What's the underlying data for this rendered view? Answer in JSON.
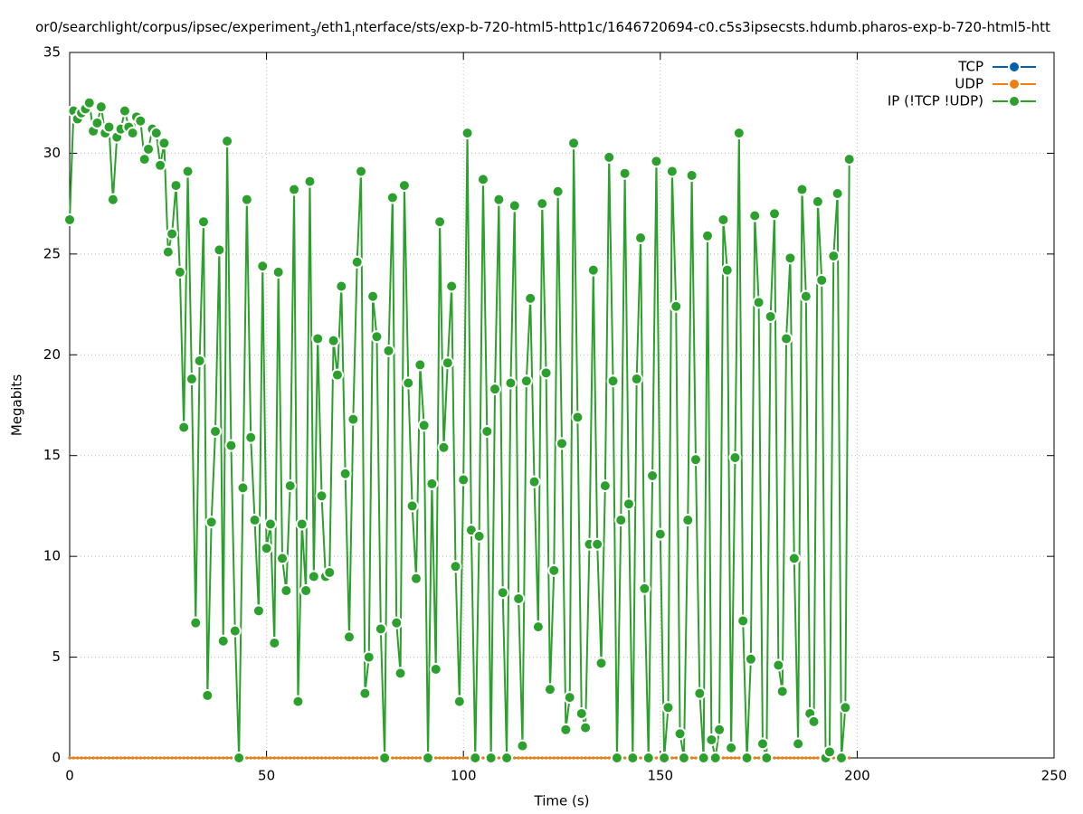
{
  "chart_data": {
    "type": "line",
    "title": [
      "or0/searchlight/corpus/ipsec/experiment",
      "3",
      "/eth1",
      "i",
      "nterface/sts/exp-b-720-html5-http1c/1646720694-c0.c5s3ipsecsts.hdumb.pharos-exp-b-720-html5-htt"
    ],
    "xlabel": "Time (s)",
    "ylabel": "Megabits",
    "xlim": [
      0,
      250
    ],
    "xticks": [
      0,
      50,
      100,
      150,
      200,
      250
    ],
    "ylim": [
      0,
      35
    ],
    "yticks": [
      0,
      5,
      10,
      15,
      20,
      25,
      30,
      35
    ],
    "grid": true,
    "legend": "top-right",
    "x": [
      0,
      1,
      2,
      3,
      4,
      5,
      6,
      7,
      8,
      9,
      10,
      11,
      12,
      13,
      14,
      15,
      16,
      17,
      18,
      19,
      20,
      21,
      22,
      23,
      24,
      25,
      26,
      27,
      28,
      29,
      30,
      31,
      32,
      33,
      34,
      35,
      36,
      37,
      38,
      39,
      40,
      41,
      42,
      43,
      44,
      45,
      46,
      47,
      48,
      49,
      50,
      51,
      52,
      53,
      54,
      55,
      56,
      57,
      58,
      59,
      60,
      61,
      62,
      63,
      64,
      65,
      66,
      67,
      68,
      69,
      70,
      71,
      72,
      73,
      74,
      75,
      76,
      77,
      78,
      79,
      80,
      81,
      82,
      83,
      84,
      85,
      86,
      87,
      88,
      89,
      90,
      91,
      92,
      93,
      94,
      95,
      96,
      97,
      98,
      99,
      100,
      101,
      102,
      103,
      104,
      105,
      106,
      107,
      108,
      109,
      110,
      111,
      112,
      113,
      114,
      115,
      116,
      117,
      118,
      119,
      120,
      121,
      122,
      123,
      124,
      125,
      126,
      127,
      128,
      129,
      130,
      131,
      132,
      133,
      134,
      135,
      136,
      137,
      138,
      139,
      140,
      141,
      142,
      143,
      144,
      145,
      146,
      147,
      148,
      149,
      150,
      151,
      152,
      153,
      154,
      155,
      156,
      157,
      158,
      159,
      160,
      161,
      162,
      163,
      164,
      165,
      166,
      167,
      168,
      169,
      170,
      171,
      172,
      173,
      174,
      175,
      176,
      177,
      178,
      179,
      180,
      181,
      182,
      183,
      184,
      185,
      186,
      187,
      188,
      189,
      190,
      191,
      192,
      193,
      194,
      195,
      196,
      197,
      198
    ],
    "series": [
      {
        "name": "TCP",
        "color": "#0060ad",
        "values": [
          0,
          0,
          0,
          0,
          0,
          0,
          0,
          0,
          0,
          0,
          0,
          0,
          0,
          0,
          0,
          0,
          0,
          0,
          0,
          0,
          0,
          0,
          0,
          0,
          0,
          0,
          0,
          0,
          0,
          0,
          0,
          0,
          0,
          0,
          0,
          0,
          0,
          0,
          0,
          0,
          0,
          0,
          0,
          0,
          0,
          0,
          0,
          0,
          0,
          0,
          0,
          0,
          0,
          0,
          0,
          0,
          0,
          0,
          0,
          0,
          0,
          0,
          0,
          0,
          0,
          0,
          0,
          0,
          0,
          0,
          0,
          0,
          0,
          0,
          0,
          0,
          0,
          0,
          0,
          0,
          0,
          0,
          0,
          0,
          0,
          0,
          0,
          0,
          0,
          0,
          0,
          0,
          0,
          0,
          0,
          0,
          0,
          0,
          0,
          0,
          0,
          0,
          0,
          0,
          0,
          0,
          0,
          0,
          0,
          0,
          0,
          0,
          0,
          0,
          0,
          0,
          0,
          0,
          0,
          0,
          0,
          0,
          0,
          0,
          0,
          0,
          0,
          0,
          0,
          0,
          0,
          0,
          0,
          0,
          0,
          0,
          0,
          0,
          0,
          0,
          0,
          0,
          0,
          0,
          0,
          0,
          0,
          0,
          0,
          0,
          0,
          0,
          0,
          0,
          0,
          0,
          0,
          0,
          0,
          0,
          0,
          0,
          0,
          0,
          0,
          0,
          0,
          0,
          0,
          0,
          0,
          0,
          0,
          0,
          0,
          0,
          0,
          0,
          0,
          0,
          0,
          0,
          0,
          0,
          0,
          0,
          0,
          0,
          0,
          0,
          0,
          0,
          0,
          0,
          0,
          0,
          0,
          0,
          0
        ]
      },
      {
        "name": "UDP",
        "color": "#f07f12",
        "values": [
          0,
          0,
          0,
          0,
          0,
          0,
          0,
          0,
          0,
          0,
          0,
          0,
          0,
          0,
          0,
          0,
          0,
          0,
          0,
          0,
          0,
          0,
          0,
          0,
          0,
          0,
          0,
          0,
          0,
          0,
          0,
          0,
          0,
          0,
          0,
          0,
          0,
          0,
          0,
          0,
          0,
          0,
          0,
          0,
          0,
          0,
          0,
          0,
          0,
          0,
          0,
          0,
          0,
          0,
          0,
          0,
          0,
          0,
          0,
          0,
          0,
          0,
          0,
          0,
          0,
          0,
          0,
          0,
          0,
          0,
          0,
          0,
          0,
          0,
          0,
          0,
          0,
          0,
          0,
          0,
          0,
          0,
          0,
          0,
          0,
          0,
          0,
          0,
          0,
          0,
          0,
          0,
          0,
          0,
          0,
          0,
          0,
          0,
          0,
          0,
          0,
          0,
          0,
          0,
          0,
          0,
          0,
          0,
          0,
          0,
          0,
          0,
          0,
          0,
          0,
          0,
          0,
          0,
          0,
          0,
          0,
          0,
          0,
          0,
          0,
          0,
          0,
          0,
          0,
          0,
          0,
          0,
          0,
          0,
          0,
          0,
          0,
          0,
          0,
          0,
          0,
          0,
          0,
          0,
          0,
          0,
          0,
          0,
          0,
          0,
          0,
          0,
          0,
          0,
          0,
          0,
          0,
          0,
          0,
          0,
          0,
          0,
          0,
          0,
          0,
          0,
          0,
          0,
          0,
          0,
          0,
          0,
          0,
          0,
          0,
          0,
          0,
          0,
          0,
          0,
          0,
          0,
          0,
          0,
          0,
          0,
          0,
          0,
          0,
          0,
          0,
          0,
          0,
          0,
          0,
          0,
          0,
          0,
          0
        ]
      },
      {
        "name": "IP (!TCP  !UDP)",
        "color": "#2ca02c",
        "values": [
          26.7,
          32.1,
          31.7,
          32.0,
          32.2,
          32.5,
          31.1,
          31.5,
          32.3,
          31.0,
          31.3,
          27.7,
          30.8,
          31.2,
          32.1,
          31.3,
          31.0,
          31.8,
          31.6,
          29.7,
          30.2,
          31.2,
          31.0,
          29.4,
          30.5,
          25.1,
          26.0,
          28.4,
          24.1,
          16.4,
          29.1,
          18.8,
          6.7,
          19.7,
          26.6,
          3.1,
          11.7,
          16.2,
          25.2,
          5.8,
          30.6,
          15.5,
          6.3,
          0,
          13.4,
          27.7,
          15.9,
          11.8,
          7.3,
          24.4,
          10.4,
          11.6,
          5.7,
          24.1,
          9.9,
          8.3,
          13.5,
          28.2,
          2.8,
          11.6,
          8.3,
          28.6,
          9.0,
          20.8,
          13.0,
          9.0,
          9.2,
          20.7,
          19.0,
          23.4,
          14.1,
          6.0,
          16.8,
          24.6,
          29.1,
          3.2,
          5.0,
          22.9,
          20.9,
          6.4,
          0,
          20.2,
          27.8,
          6.7,
          4.2,
          28.4,
          18.6,
          12.5,
          8.9,
          19.5,
          16.5,
          0,
          13.6,
          4.4,
          26.6,
          15.4,
          19.6,
          23.4,
          9.5,
          2.8,
          13.8,
          31.0,
          11.3,
          0,
          11.0,
          28.7,
          16.2,
          0,
          18.3,
          27.7,
          8.2,
          0,
          18.6,
          27.4,
          7.9,
          0.6,
          18.7,
          22.8,
          13.7,
          6.5,
          27.5,
          19.1,
          3.4,
          9.3,
          28.1,
          15.6,
          1.4,
          3.0,
          30.5,
          16.9,
          2.2,
          1.5,
          10.6,
          24.2,
          10.6,
          4.7,
          13.5,
          29.8,
          18.7,
          0,
          11.8,
          29.0,
          12.6,
          0,
          18.8,
          25.8,
          8.4,
          0,
          14.0,
          29.6,
          11.1,
          0,
          2.5,
          29.1,
          22.4,
          1.2,
          0,
          11.8,
          28.9,
          14.8,
          3.2,
          0,
          25.9,
          0.9,
          0,
          1.4,
          26.7,
          24.2,
          0.5,
          14.9,
          31.0,
          6.8,
          0,
          4.9,
          26.9,
          22.6,
          0.7,
          0,
          21.9,
          27.0,
          4.6,
          3.3,
          20.8,
          24.8,
          9.9,
          0.7,
          28.2,
          22.9,
          2.2,
          1.8,
          27.6,
          23.7,
          0,
          0.3,
          24.9,
          28.0,
          0,
          2.5,
          29.7
        ]
      }
    ]
  }
}
